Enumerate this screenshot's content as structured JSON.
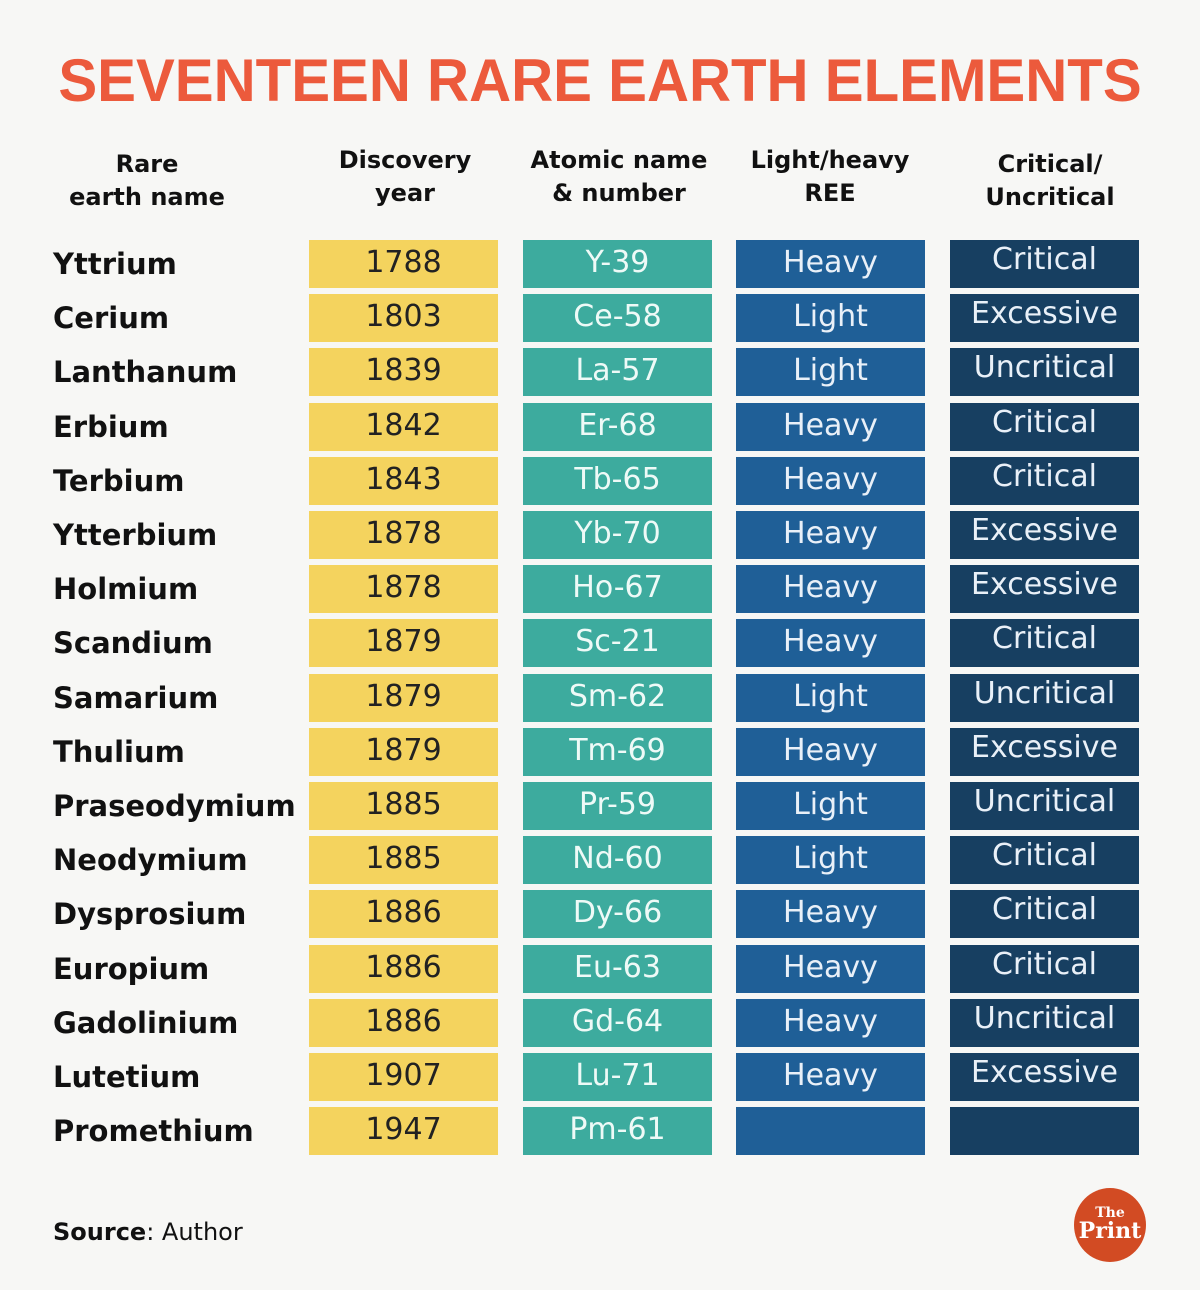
{
  "title": "SEVENTEEN RARE EARTH ELEMENTS",
  "headers": [
    "Rare\nearth name",
    "Discovery\nyear",
    "Atomic name\n& number",
    "Light/heavy\nREE",
    "Critical/\nUncritical"
  ],
  "rows": [
    [
      "Yttrium",
      "1788",
      "Y-39",
      "Heavy",
      "Critical"
    ],
    [
      "Cerium",
      "1803",
      "Ce-58",
      "Light",
      "Excessive"
    ],
    [
      "Lanthanum",
      "1839",
      "La-57",
      "Light",
      "Uncritical"
    ],
    [
      "Erbium",
      "1842",
      "Er-68",
      "Heavy",
      "Critical"
    ],
    [
      "Terbium",
      "1843",
      "Tb-65",
      "Heavy",
      "Critical"
    ],
    [
      "Ytterbium",
      "1878",
      "Yb-70",
      "Heavy",
      "Excessive"
    ],
    [
      "Holmium",
      "1878",
      "Ho-67",
      "Heavy",
      "Excessive"
    ],
    [
      "Scandium",
      "1879",
      "Sc-21",
      "Heavy",
      "Critical"
    ],
    [
      "Samarium",
      "1879",
      "Sm-62",
      "Light",
      "Uncritical"
    ],
    [
      "Thulium",
      "1879",
      "Tm-69",
      "Heavy",
      "Excessive"
    ],
    [
      "Praseodymium",
      "1885",
      "Pr-59",
      "Light",
      "Uncritical"
    ],
    [
      "Neodymium",
      "1885",
      "Nd-60",
      "Light",
      "Critical"
    ],
    [
      "Dysprosium",
      "1886",
      "Dy-66",
      "Heavy",
      "Critical"
    ],
    [
      "Europium",
      "1886",
      "Eu-63",
      "Heavy",
      "Critical"
    ],
    [
      "Gadolinium",
      "1886",
      "Gd-64",
      "Heavy",
      "Uncritical"
    ],
    [
      "Lutetium",
      "1907",
      "Lu-71",
      "Heavy",
      "Excessive"
    ],
    [
      "Promethium",
      "1947",
      "Pm-61",
      "",
      ""
    ]
  ],
  "source": {
    "label": "Source",
    "value": ": Author"
  },
  "logo": {
    "line1": "The",
    "line2": "Print"
  },
  "colors": {
    "title": "#ec5a3c",
    "year": "#f4d35e",
    "atomic": "#3dab9e",
    "ree": "#1f5f97",
    "critical": "#173f61",
    "logo": "#d24b23"
  }
}
